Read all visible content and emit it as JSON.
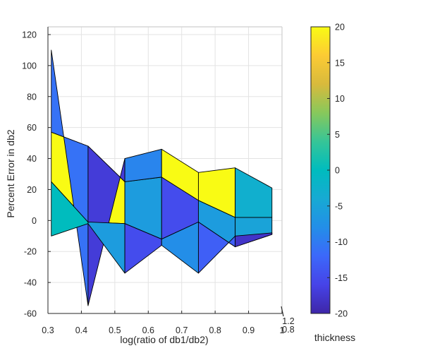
{
  "chart_data": {
    "type": "surface",
    "xlabel": "log(ratio of db1/db2)",
    "ylabel": "Percent Error in db2",
    "colorbar_label": "thickness",
    "xlim": [
      0.3,
      0.98
    ],
    "ylim": [
      -60,
      125
    ],
    "x_ticks": [
      "0.3",
      "0.4",
      "0.5",
      "0.6",
      "0.7",
      "0.8",
      "0.9",
      "1"
    ],
    "y_ticks": [
      "-60",
      "-40",
      "-20",
      "0",
      "20",
      "40",
      "60",
      "80",
      "100",
      "120"
    ],
    "z_ticks_visible": [
      "1.2",
      "0.8"
    ],
    "colorbar": {
      "range": [
        -20,
        20
      ],
      "ticks": [
        "-20",
        "-15",
        "-10",
        "-5",
        "0",
        "5",
        "10",
        "15",
        "20"
      ],
      "colormap": "parula"
    },
    "grid": true,
    "x": [
      0.31,
      0.42,
      0.53,
      0.64,
      0.75,
      0.86,
      0.97
    ],
    "surface_rows": [
      {
        "y": [
          110,
          -55,
          40,
          46,
          31,
          34,
          21
        ],
        "thickness": [
          -11,
          -17,
          -9,
          20,
          20,
          -3,
          -1
        ]
      },
      {
        "y": [
          57,
          48,
          25,
          28,
          13,
          2,
          2
        ],
        "thickness": [
          20,
          20,
          -6,
          -15,
          -6,
          -5,
          -17
        ]
      },
      {
        "y": [
          25,
          -1,
          -2,
          -12,
          -1,
          -17,
          -9
        ],
        "thickness": [
          0,
          -6,
          -15,
          -8,
          -13,
          -18,
          -17
        ]
      },
      {
        "y": [
          -10,
          -2,
          -34,
          -16,
          -34,
          -10,
          -8
        ],
        "thickness": [
          2,
          20,
          -10,
          20,
          -9,
          20,
          20
        ]
      }
    ]
  }
}
